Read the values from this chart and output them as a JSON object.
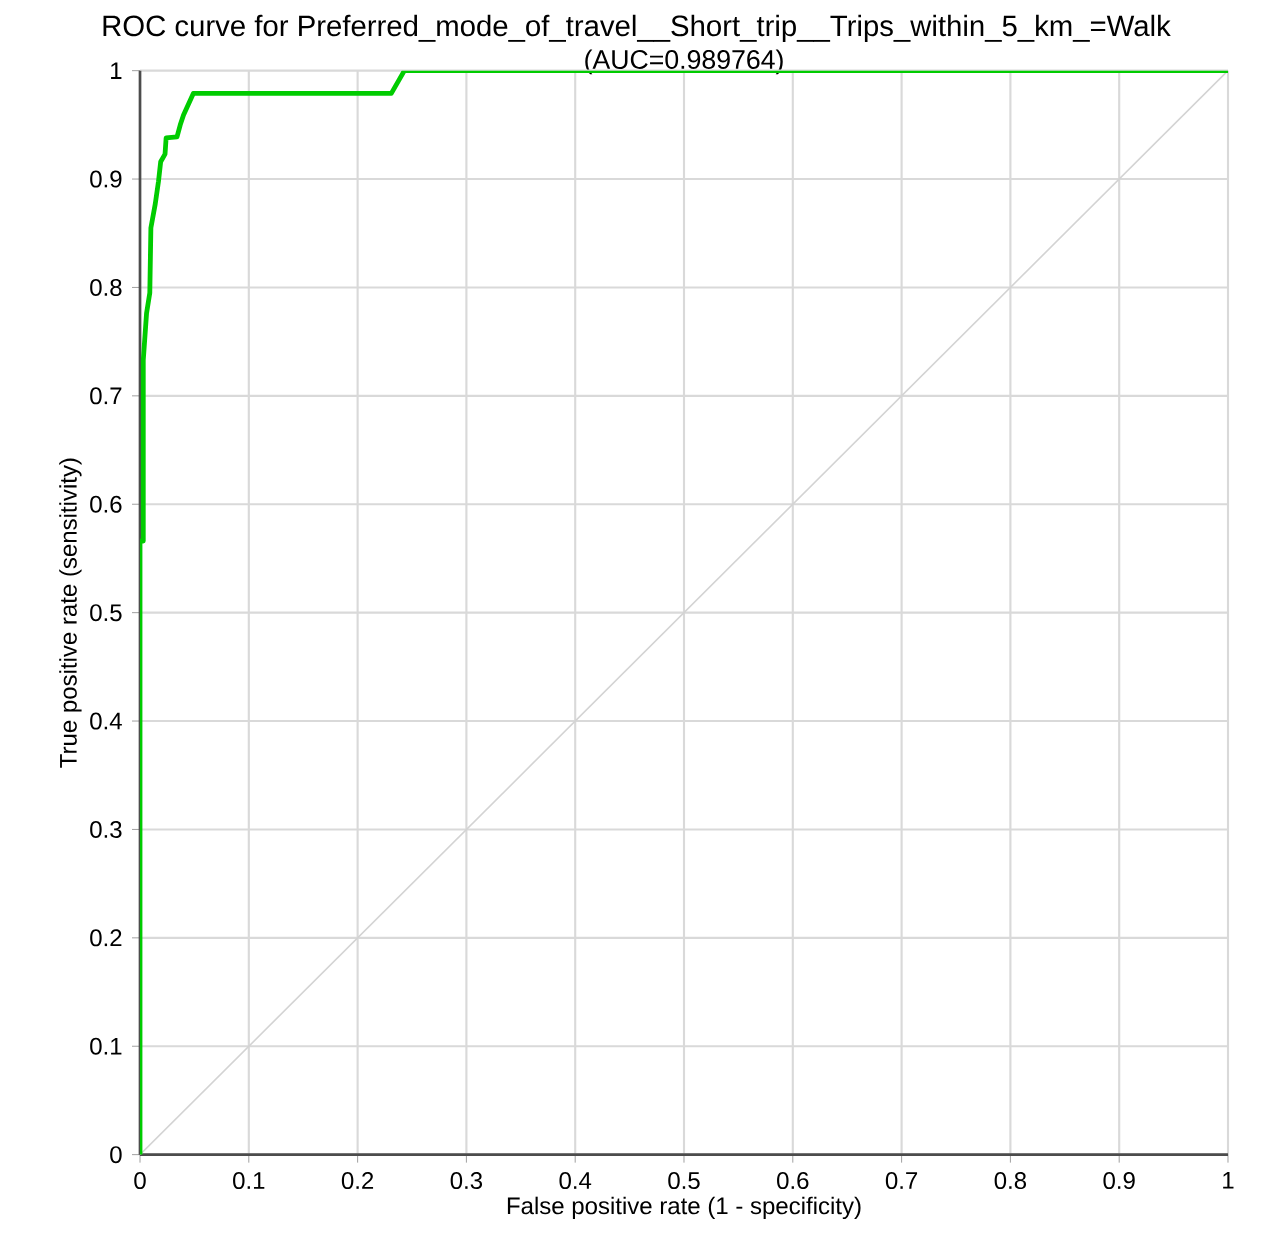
{
  "chart_data": {
    "type": "line",
    "title": "ROC curve for Preferred_mode_of_travel__Short_trip__Trips_within_5_km_=Walk",
    "subtitle": "(AUC=0.989764)",
    "xlabel": "False positive rate (1 - specificity)",
    "ylabel": "True positive rate (sensitivity)",
    "xlim": [
      0,
      1
    ],
    "ylim": [
      0,
      1
    ],
    "xticks": [
      0,
      0.1,
      0.2,
      0.3,
      0.4,
      0.5,
      0.6,
      0.7,
      0.8,
      0.9,
      1
    ],
    "yticks": [
      0,
      0.1,
      0.2,
      0.3,
      0.4,
      0.5,
      0.6,
      0.7,
      0.8,
      0.9,
      1
    ],
    "grid": true,
    "marker": "none",
    "line_style": "solid",
    "series": [
      {
        "color": "#d3d3d3",
        "x": [
          0,
          1
        ],
        "values": [
          0,
          1
        ]
      },
      {
        "color": "#00cc00",
        "x": [
          0,
          0,
          0.003,
          0.003,
          0.006,
          0.009,
          0.01,
          0.014,
          0.017,
          0.019,
          0.023,
          0.024,
          0.034,
          0.037,
          0.04,
          0.049,
          0.231,
          0.243,
          1
        ],
        "values": [
          0,
          0.566,
          0.566,
          0.733,
          0.776,
          0.795,
          0.855,
          0.877,
          0.898,
          0.916,
          0.923,
          0.938,
          0.939,
          0.95,
          0.959,
          0.979,
          0.979,
          1,
          1
        ]
      }
    ]
  }
}
